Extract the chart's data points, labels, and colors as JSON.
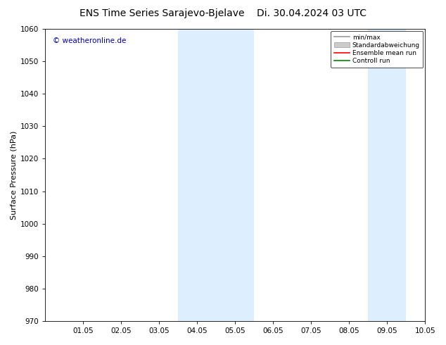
{
  "title": "ENS Time Series Sarajevo-Bjelave",
  "title_date": "Di. 30.04.2024 03 UTC",
  "ylabel": "Surface Pressure (hPa)",
  "ylim": [
    970,
    1060
  ],
  "yticks": [
    970,
    980,
    990,
    1000,
    1010,
    1020,
    1030,
    1040,
    1050,
    1060
  ],
  "xlim": [
    0,
    10
  ],
  "xtick_positions": [
    1,
    2,
    3,
    4,
    5,
    6,
    7,
    8,
    9,
    10
  ],
  "xtick_labels": [
    "01.05",
    "02.05",
    "03.05",
    "04.05",
    "05.05",
    "06.05",
    "07.05",
    "08.05",
    "09.05",
    "10.05"
  ],
  "shaded_bands": [
    {
      "x_start": 3.5,
      "x_end": 4.5
    },
    {
      "x_start": 4.5,
      "x_end": 5.5
    },
    {
      "x_start": 8.5,
      "x_end": 9.5
    }
  ],
  "shade_color": "#ddeeff",
  "background_color": "#ffffff",
  "watermark": "© weatheronline.de",
  "watermark_color": "#0000cc",
  "legend_items": [
    {
      "label": "min/max",
      "color": "#999999",
      "type": "line"
    },
    {
      "label": "Standardabweichung",
      "color": "#cccccc",
      "type": "box"
    },
    {
      "label": "Ensemble mean run",
      "color": "#ff0000",
      "type": "line"
    },
    {
      "label": "Controll run",
      "color": "#008800",
      "type": "line"
    }
  ],
  "title_fontsize": 10,
  "axis_label_fontsize": 8,
  "tick_fontsize": 7.5
}
